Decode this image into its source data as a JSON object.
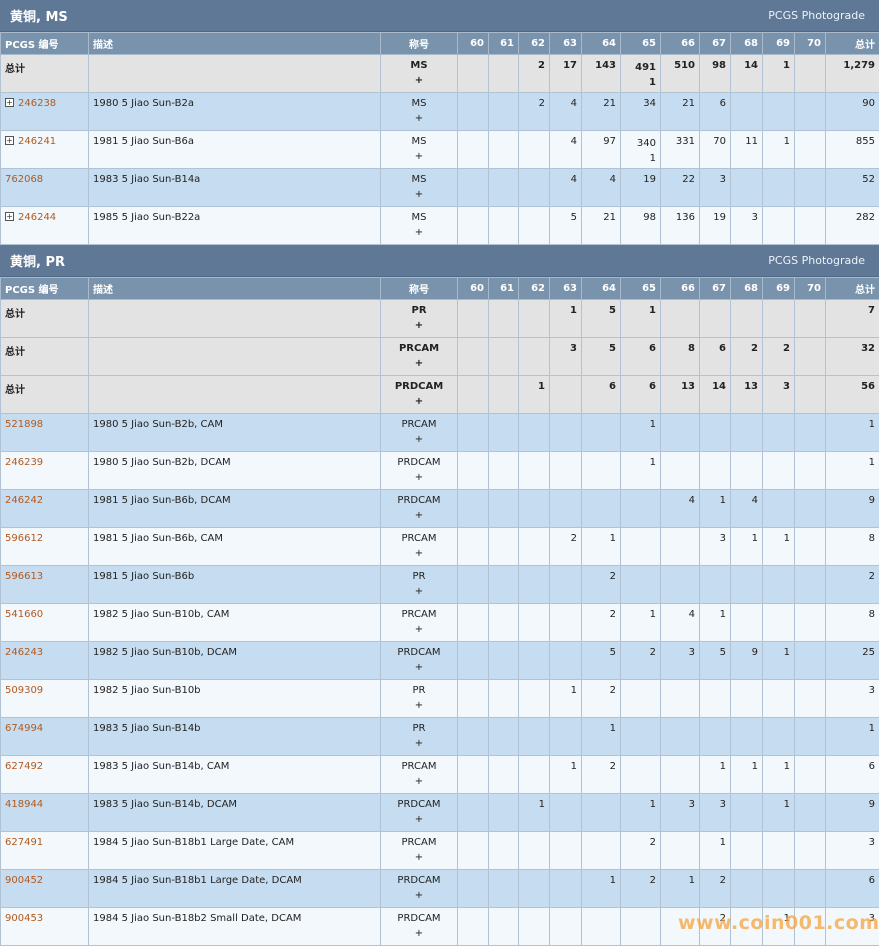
{
  "sections": [
    {
      "title": "黄铜, MS",
      "link": "PCGS Photograde",
      "headers": [
        "PCGS 编号",
        "描述",
        "称号",
        "60",
        "61",
        "62",
        "63",
        "64",
        "65",
        "66",
        "67",
        "68",
        "69",
        "70",
        "总计"
      ],
      "rows": [
        {
          "type": "total",
          "pcgs": "总计",
          "desc": "",
          "designation": "MS",
          "plus": "+",
          "grades": [
            "",
            "",
            "2",
            "17",
            "143",
            "491",
            "510",
            "98",
            "14",
            "1",
            ""
          ],
          "grade_plus": {
            "5": "1"
          },
          "total": "1,279"
        },
        {
          "type": "item",
          "expand": true,
          "pcgs": "246238",
          "desc": "1980 5 Jiao Sun-B2a",
          "designation": "MS",
          "plus": "+",
          "grades": [
            "",
            "",
            "2",
            "4",
            "21",
            "34",
            "21",
            "6",
            "",
            "",
            ""
          ],
          "total": "90"
        },
        {
          "type": "item",
          "expand": true,
          "pcgs": "246241",
          "desc": "1981 5 Jiao Sun-B6a",
          "designation": "MS",
          "plus": "+",
          "grades": [
            "",
            "",
            "",
            "4",
            "97",
            "340",
            "331",
            "70",
            "11",
            "1",
            ""
          ],
          "grade_plus": {
            "5": "1"
          },
          "total": "855"
        },
        {
          "type": "item",
          "expand": false,
          "pcgs": "762068",
          "desc": "1983 5 Jiao Sun-B14a",
          "designation": "MS",
          "plus": "+",
          "grades": [
            "",
            "",
            "",
            "4",
            "4",
            "19",
            "22",
            "3",
            "",
            "",
            ""
          ],
          "total": "52"
        },
        {
          "type": "item",
          "expand": true,
          "pcgs": "246244",
          "desc": "1985 5 Jiao Sun-B22a",
          "designation": "MS",
          "plus": "+",
          "grades": [
            "",
            "",
            "",
            "5",
            "21",
            "98",
            "136",
            "19",
            "3",
            "",
            ""
          ],
          "total": "282"
        }
      ]
    },
    {
      "title": "黄铜, PR",
      "link": "PCGS Photograde",
      "headers": [
        "PCGS 编号",
        "描述",
        "称号",
        "60",
        "61",
        "62",
        "63",
        "64",
        "65",
        "66",
        "67",
        "68",
        "69",
        "70",
        "总计"
      ],
      "rows": [
        {
          "type": "total",
          "pcgs": "总计",
          "desc": "",
          "designation": "PR",
          "plus": "+",
          "grades": [
            "",
            "",
            "",
            "1",
            "5",
            "1",
            "",
            "",
            "",
            "",
            ""
          ],
          "total": "7"
        },
        {
          "type": "total",
          "pcgs": "总计",
          "desc": "",
          "designation": "PRCAM",
          "plus": "+",
          "grades": [
            "",
            "",
            "",
            "3",
            "5",
            "6",
            "8",
            "6",
            "2",
            "2",
            ""
          ],
          "total": "32"
        },
        {
          "type": "total",
          "pcgs": "总计",
          "desc": "",
          "designation": "PRDCAM",
          "plus": "+",
          "grades": [
            "",
            "",
            "1",
            "",
            "6",
            "6",
            "13",
            "14",
            "13",
            "3",
            ""
          ],
          "total": "56"
        },
        {
          "type": "item",
          "expand": false,
          "pcgs": "521898",
          "desc": "1980 5 Jiao Sun-B2b, CAM",
          "designation": "PRCAM",
          "plus": "+",
          "grades": [
            "",
            "",
            "",
            "",
            "",
            "1",
            "",
            "",
            "",
            "",
            ""
          ],
          "total": "1"
        },
        {
          "type": "item",
          "expand": false,
          "pcgs": "246239",
          "desc": "1980 5 Jiao Sun-B2b, DCAM",
          "designation": "PRDCAM",
          "plus": "+",
          "grades": [
            "",
            "",
            "",
            "",
            "",
            "1",
            "",
            "",
            "",
            "",
            ""
          ],
          "total": "1"
        },
        {
          "type": "item",
          "expand": false,
          "pcgs": "246242",
          "desc": "1981 5 Jiao Sun-B6b, DCAM",
          "designation": "PRDCAM",
          "plus": "+",
          "grades": [
            "",
            "",
            "",
            "",
            "",
            "",
            "4",
            "1",
            "4",
            "",
            ""
          ],
          "total": "9"
        },
        {
          "type": "item",
          "expand": false,
          "pcgs": "596612",
          "desc": "1981 5 Jiao Sun-B6b, CAM",
          "designation": "PRCAM",
          "plus": "+",
          "grades": [
            "",
            "",
            "",
            "2",
            "1",
            "",
            "",
            "3",
            "1",
            "1",
            ""
          ],
          "total": "8"
        },
        {
          "type": "item",
          "expand": false,
          "pcgs": "596613",
          "desc": "1981 5 Jiao Sun-B6b",
          "designation": "PR",
          "plus": "+",
          "grades": [
            "",
            "",
            "",
            "",
            "2",
            "",
            "",
            "",
            "",
            "",
            ""
          ],
          "total": "2"
        },
        {
          "type": "item",
          "expand": false,
          "pcgs": "541660",
          "desc": "1982 5 Jiao Sun-B10b, CAM",
          "designation": "PRCAM",
          "plus": "+",
          "grades": [
            "",
            "",
            "",
            "",
            "2",
            "1",
            "4",
            "1",
            "",
            "",
            ""
          ],
          "total": "8"
        },
        {
          "type": "item",
          "expand": false,
          "pcgs": "246243",
          "desc": "1982 5 Jiao Sun-B10b, DCAM",
          "designation": "PRDCAM",
          "plus": "+",
          "grades": [
            "",
            "",
            "",
            "",
            "5",
            "2",
            "3",
            "5",
            "9",
            "1",
            ""
          ],
          "total": "25"
        },
        {
          "type": "item",
          "expand": false,
          "pcgs": "509309",
          "desc": "1982 5 Jiao Sun-B10b",
          "designation": "PR",
          "plus": "+",
          "grades": [
            "",
            "",
            "",
            "1",
            "2",
            "",
            "",
            "",
            "",
            "",
            ""
          ],
          "total": "3"
        },
        {
          "type": "item",
          "expand": false,
          "pcgs": "674994",
          "desc": "1983 5 Jiao Sun-B14b",
          "designation": "PR",
          "plus": "+",
          "grades": [
            "",
            "",
            "",
            "",
            "1",
            "",
            "",
            "",
            "",
            "",
            ""
          ],
          "total": "1"
        },
        {
          "type": "item",
          "expand": false,
          "pcgs": "627492",
          "desc": "1983 5 Jiao Sun-B14b, CAM",
          "designation": "PRCAM",
          "plus": "+",
          "grades": [
            "",
            "",
            "",
            "1",
            "2",
            "",
            "",
            "1",
            "1",
            "1",
            ""
          ],
          "total": "6"
        },
        {
          "type": "item",
          "expand": false,
          "pcgs": "418944",
          "desc": "1983 5 Jiao Sun-B14b, DCAM",
          "designation": "PRDCAM",
          "plus": "+",
          "grades": [
            "",
            "",
            "1",
            "",
            "",
            "1",
            "3",
            "3",
            "",
            "1",
            ""
          ],
          "total": "9"
        },
        {
          "type": "item",
          "expand": false,
          "pcgs": "627491",
          "desc": "1984 5 Jiao Sun-B18b1 Large Date, CAM",
          "designation": "PRCAM",
          "plus": "+",
          "grades": [
            "",
            "",
            "",
            "",
            "",
            "2",
            "",
            "1",
            "",
            "",
            ""
          ],
          "total": "3"
        },
        {
          "type": "item",
          "expand": false,
          "pcgs": "900452",
          "desc": "1984 5 Jiao Sun-B18b1 Large Date, DCAM",
          "designation": "PRDCAM",
          "plus": "+",
          "grades": [
            "",
            "",
            "",
            "",
            "1",
            "2",
            "1",
            "2",
            "",
            "",
            ""
          ],
          "total": "6"
        },
        {
          "type": "item",
          "expand": false,
          "pcgs": "900453",
          "desc": "1984 5 Jiao Sun-B18b2 Small Date, DCAM",
          "designation": "PRDCAM",
          "plus": "+",
          "grades": [
            "",
            "",
            "",
            "",
            "",
            "",
            "",
            "2",
            "",
            "1",
            ""
          ],
          "total": "3"
        }
      ]
    }
  ],
  "watermark": "www.coin001.com",
  "colors": {
    "header": "#5e7896",
    "thead": "#7a93ad",
    "link": "#b05a20",
    "row_blue": "#c6ddf1",
    "row_total": "#e3e3e3",
    "row_white": "#f3f8fc"
  }
}
